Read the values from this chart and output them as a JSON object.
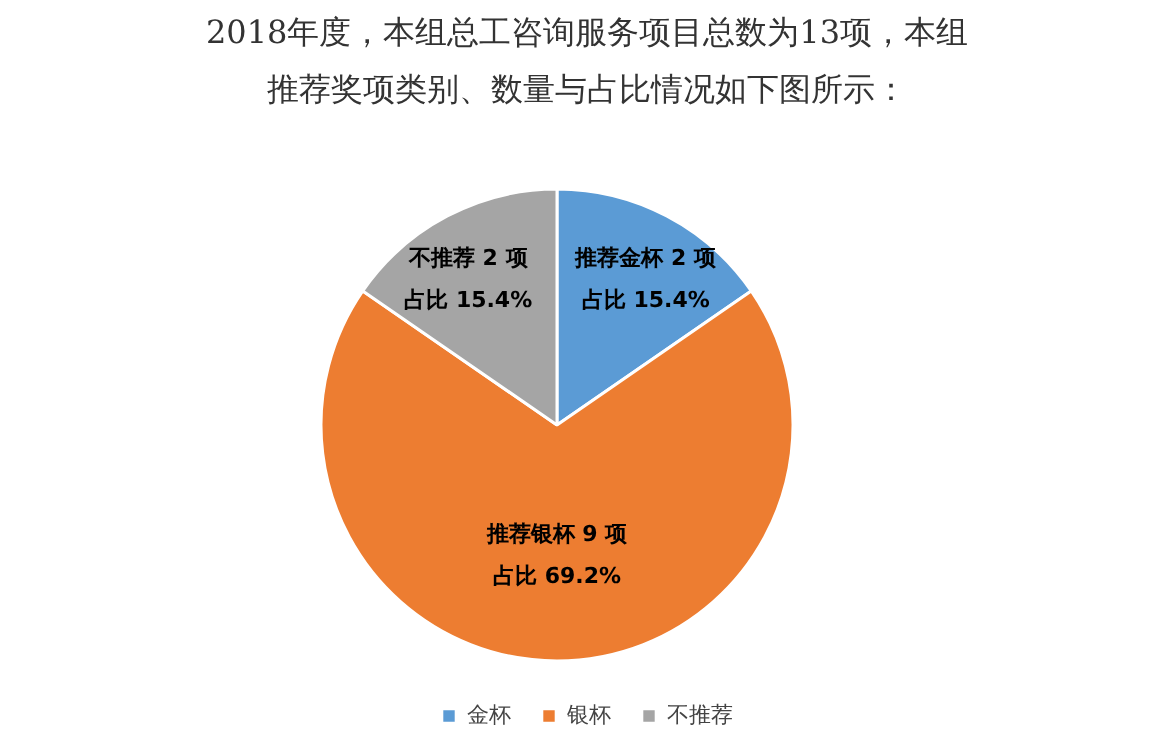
{
  "chart_data": {
    "type": "pie",
    "title": "2018年度，本组总工咨询服务项目总数为13项，本组推荐奖项类别、数量与占比情况如下图所示：",
    "categories": [
      "金杯",
      "银杯",
      "不推荐"
    ],
    "values": [
      2,
      9,
      2
    ],
    "colors": [
      "#5b9bd5",
      "#ed7d31",
      "#a5a5a5"
    ],
    "value_labels": [
      "推荐金杯 2 项占比 15.4%",
      "推荐银杯 9 项占比 69.2%",
      "不推荐 2 项占比 15.4%"
    ],
    "legend": "bottom"
  }
}
